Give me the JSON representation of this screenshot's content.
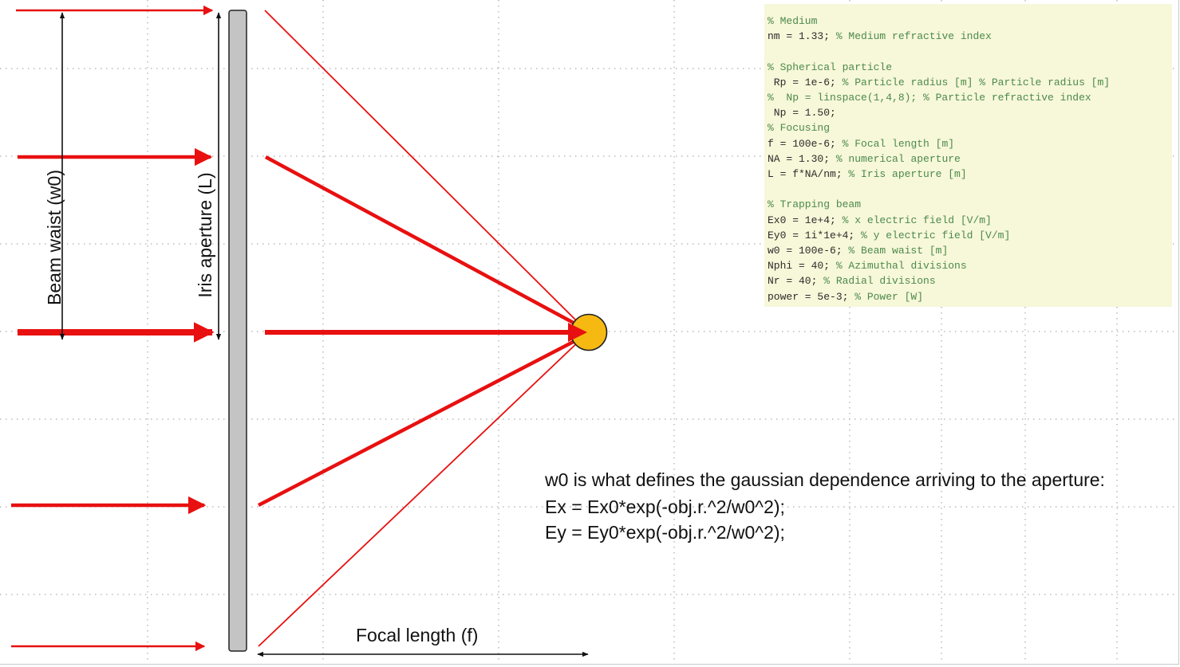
{
  "labels": {
    "beam_waist": "Beam waist (w0)",
    "iris_aperture": "Iris aperture (L)",
    "focal_length": "Focal length (f)"
  },
  "code": [
    {
      "code": "",
      "comment": "% Medium"
    },
    {
      "code": "nm = 1.33; ",
      "comment": "% Medium refractive index"
    },
    {
      "code": "",
      "comment": ""
    },
    {
      "code": "",
      "comment": "% Spherical particle"
    },
    {
      "code": " Rp = 1e-6; ",
      "comment": "% Particle radius [m] % Particle radius [m]"
    },
    {
      "code": "",
      "comment": "%  Np = linspace(1,4,8); % Particle refractive index"
    },
    {
      "code": " Np = 1.50;",
      "comment": ""
    },
    {
      "code": "",
      "comment": "% Focusing"
    },
    {
      "code": "f = 100e-6; ",
      "comment": "% Focal length [m]"
    },
    {
      "code": "NA = 1.30; ",
      "comment": "% numerical aperture"
    },
    {
      "code": "L = f*NA/nm; ",
      "comment": "% Iris aperture [m]"
    },
    {
      "code": "",
      "comment": ""
    },
    {
      "code": "",
      "comment": "% Trapping beam"
    },
    {
      "code": "Ex0 = 1e+4; ",
      "comment": "% x electric field [V/m]"
    },
    {
      "code": "Ey0 = 1i*1e+4; ",
      "comment": "% y electric field [V/m]"
    },
    {
      "code": "w0 = 100e-6; ",
      "comment": "% Beam waist [m]"
    },
    {
      "code": "Nphi = 40; ",
      "comment": "% Azimuthal divisions"
    },
    {
      "code": "Nr = 40; ",
      "comment": "% Radial divisions"
    },
    {
      "code": "power = 5e-3; ",
      "comment": "% Power [W]"
    }
  ],
  "note": [
    "w0 is what defines the gaussian dependence arriving to the aperture:",
    "Ex = Ex0*exp(-obj.r.^2/w0^2);",
    "Ey = Ey0*exp(-obj.r.^2/w0^2);"
  ],
  "colors": {
    "beam": "#e81010",
    "iris": "#c4c4c4",
    "particle": "#f6b912",
    "code_background": "#f7f7d9",
    "comment": "#4b8a4b"
  }
}
